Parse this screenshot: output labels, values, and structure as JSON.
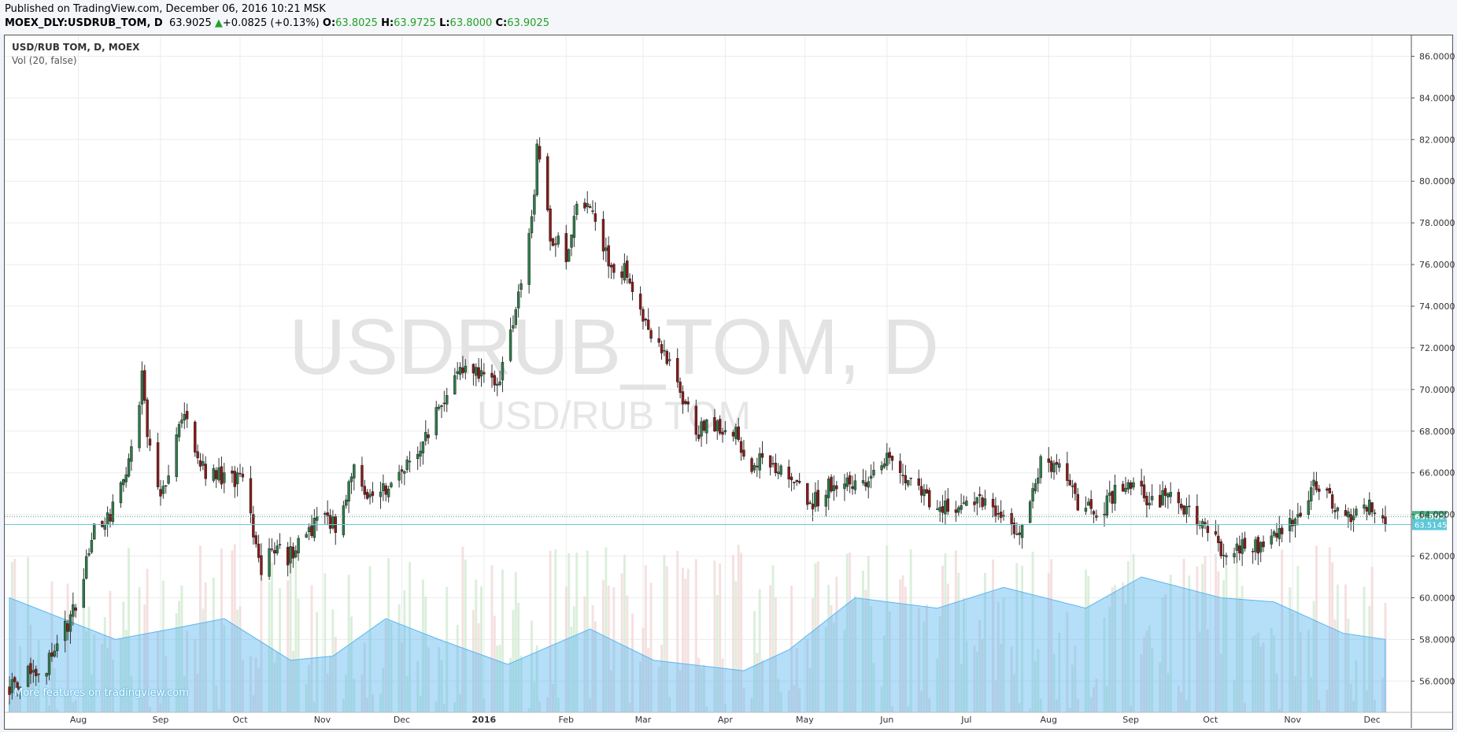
{
  "header": {
    "published": "Published on TradingView.com, December 06, 2016 10:21 MSK",
    "symbol": "MOEX_DLY:USDRUB_TOM, D",
    "last": "63.9025",
    "change": "+0.0825 (+0.13%)",
    "o_label": "O:",
    "o": "63.8025",
    "h_label": "H:",
    "h": "63.9725",
    "l_label": "L:",
    "l": "63.8000",
    "c_label": "C:",
    "c": "63.9025"
  },
  "legend": {
    "title": "USD/RUB TOM, D, MOEX",
    "volume_study": "Vol (20, false)"
  },
  "watermark": {
    "line1": "USDRUB_TOM, D",
    "line2": "USD/RUB TOM"
  },
  "promo": "More features on tradingview.com",
  "colors": {
    "up_candle": "#2e7d4a",
    "down_candle": "#8b1a1a",
    "vol_up": "#cfe9cf",
    "vol_down": "#f2d6d6",
    "vol_ma": "#5ab6f0",
    "price_label": "#4db38a",
    "line_label": "#5cc7d9"
  },
  "chart_data": {
    "type": "candlestick",
    "symbol": "USD/RUB TOM",
    "x_tick_labels": [
      "Aug",
      "Sep",
      "Oct",
      "Nov",
      "Dec",
      "2016",
      "Feb",
      "Mar",
      "Apr",
      "May",
      "Jun",
      "Jul",
      "Aug",
      "Sep",
      "Oct",
      "Nov",
      "Dec"
    ],
    "y_tick_labels": [
      "56.0000",
      "58.0000",
      "60.0000",
      "62.0000",
      "64.0000",
      "66.0000",
      "68.0000",
      "70.0000",
      "72.0000",
      "74.0000",
      "76.0000",
      "78.0000",
      "80.0000",
      "82.0000",
      "84.0000",
      "86.0000"
    ],
    "ylim": [
      54.5,
      87.0
    ],
    "x_range": [
      "2015-07-06",
      "2016-12-06"
    ],
    "grid": true,
    "last_price": 63.9025,
    "horizontal_line": 63.5145,
    "last_price_label": "63.9025",
    "horizontal_line_label": "63.5145",
    "close_path": [
      [
        "2015-07-06",
        55.8
      ],
      [
        "2015-07-20",
        56.8
      ],
      [
        "2015-07-31",
        59.5
      ],
      [
        "2015-08-07",
        63.5
      ],
      [
        "2015-08-14",
        64.2
      ],
      [
        "2015-08-18",
        65.5
      ],
      [
        "2015-08-24",
        69.5
      ],
      [
        "2015-08-25",
        70.5
      ],
      [
        "2015-08-28",
        67.0
      ],
      [
        "2015-09-01",
        64.5
      ],
      [
        "2015-09-07",
        68.0
      ],
      [
        "2015-09-11",
        68.5
      ],
      [
        "2015-09-18",
        66.0
      ],
      [
        "2015-09-25",
        65.8
      ],
      [
        "2015-10-02",
        65.5
      ],
      [
        "2015-10-06",
        63.0
      ],
      [
        "2015-10-09",
        61.5
      ],
      [
        "2015-10-14",
        62.5
      ],
      [
        "2015-10-19",
        62.0
      ],
      [
        "2015-10-26",
        63.0
      ],
      [
        "2015-11-02",
        64.0
      ],
      [
        "2015-11-06",
        63.5
      ],
      [
        "2015-11-13",
        66.0
      ],
      [
        "2015-11-20",
        64.8
      ],
      [
        "2015-11-27",
        65.5
      ],
      [
        "2015-12-04",
        66.5
      ],
      [
        "2015-12-11",
        68.0
      ],
      [
        "2015-12-18",
        70.0
      ],
      [
        "2015-12-25",
        71.0
      ],
      [
        "2016-01-06",
        70.0
      ],
      [
        "2016-01-12",
        73.5
      ],
      [
        "2016-01-15",
        75.5
      ],
      [
        "2016-01-20",
        79.0
      ],
      [
        "2016-01-21",
        81.5
      ],
      [
        "2016-01-26",
        77.5
      ],
      [
        "2016-02-01",
        76.5
      ],
      [
        "2016-02-05",
        78.5
      ],
      [
        "2016-02-11",
        78.8
      ],
      [
        "2016-02-15",
        76.5
      ],
      [
        "2016-02-19",
        76.0
      ],
      [
        "2016-02-25",
        75.5
      ],
      [
        "2016-03-01",
        73.5
      ],
      [
        "2016-03-09",
        71.5
      ],
      [
        "2016-03-15",
        70.0
      ],
      [
        "2016-03-21",
        68.0
      ],
      [
        "2016-03-28",
        68.2
      ],
      [
        "2016-04-04",
        68.0
      ],
      [
        "2016-04-11",
        66.5
      ],
      [
        "2016-04-18",
        66.5
      ],
      [
        "2016-04-25",
        66.0
      ],
      [
        "2016-05-04",
        64.5
      ],
      [
        "2016-05-11",
        65.5
      ],
      [
        "2016-05-20",
        65.5
      ],
      [
        "2016-05-27",
        66.0
      ],
      [
        "2016-06-03",
        67.0
      ],
      [
        "2016-06-10",
        65.5
      ],
      [
        "2016-06-17",
        64.5
      ],
      [
        "2016-06-24",
        64.2
      ],
      [
        "2016-07-01",
        64.3
      ],
      [
        "2016-07-08",
        64.5
      ],
      [
        "2016-07-15",
        64.0
      ],
      [
        "2016-07-21",
        63.0
      ],
      [
        "2016-07-29",
        66.5
      ],
      [
        "2016-08-05",
        66.0
      ],
      [
        "2016-08-12",
        64.5
      ],
      [
        "2016-08-19",
        64.0
      ],
      [
        "2016-08-26",
        65.0
      ],
      [
        "2016-09-02",
        65.5
      ],
      [
        "2016-09-09",
        64.5
      ],
      [
        "2016-09-16",
        65.0
      ],
      [
        "2016-09-23",
        64.2
      ],
      [
        "2016-09-30",
        63.2
      ],
      [
        "2016-10-07",
        62.0
      ],
      [
        "2016-10-14",
        62.8
      ],
      [
        "2016-10-21",
        62.5
      ],
      [
        "2016-10-28",
        63.2
      ],
      [
        "2016-11-04",
        64.0
      ],
      [
        "2016-11-10",
        65.5
      ],
      [
        "2016-11-15",
        64.8
      ],
      [
        "2016-11-22",
        64.0
      ],
      [
        "2016-11-29",
        64.5
      ],
      [
        "2016-12-06",
        63.9
      ]
    ],
    "volume_ma_series": [
      [
        "2015-07-06",
        60.0
      ],
      [
        "2015-08-15",
        58.0
      ],
      [
        "2015-09-05",
        58.5
      ],
      [
        "2015-09-25",
        59.0
      ],
      [
        "2015-10-20",
        57.0
      ],
      [
        "2015-11-05",
        57.2
      ],
      [
        "2015-11-25",
        59.0
      ],
      [
        "2015-12-15",
        58.0
      ],
      [
        "2016-01-10",
        56.8
      ],
      [
        "2016-02-10",
        58.5
      ],
      [
        "2016-03-05",
        57.0
      ],
      [
        "2016-04-08",
        56.5
      ],
      [
        "2016-04-25",
        57.5
      ],
      [
        "2016-05-20",
        60.0
      ],
      [
        "2016-06-20",
        59.5
      ],
      [
        "2016-07-15",
        60.5
      ],
      [
        "2016-08-15",
        59.5
      ],
      [
        "2016-09-05",
        61.0
      ],
      [
        "2016-10-05",
        60.0
      ],
      [
        "2016-10-25",
        59.8
      ],
      [
        "2016-11-20",
        58.3
      ],
      [
        "2016-12-06",
        58.0
      ]
    ]
  }
}
